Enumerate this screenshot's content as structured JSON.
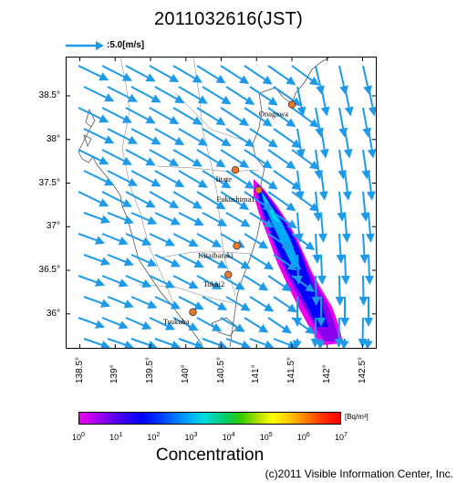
{
  "title": "2011032616(JST)",
  "wind_reference": {
    "label": ":5.0[m/s]",
    "arrow_color": "#1e9be8"
  },
  "map": {
    "lat_ticks": [
      {
        "value": 38.5,
        "label": "38.5°"
      },
      {
        "value": 38.0,
        "label": "38°"
      },
      {
        "value": 37.5,
        "label": "37.5°"
      },
      {
        "value": 37.0,
        "label": "37°"
      },
      {
        "value": 36.5,
        "label": "36.5°"
      },
      {
        "value": 36.0,
        "label": "36°"
      }
    ],
    "lon_ticks": [
      {
        "value": 138.5,
        "label": "138.5°"
      },
      {
        "value": 139.0,
        "label": "139°"
      },
      {
        "value": 139.5,
        "label": "139.5°"
      },
      {
        "value": 140.0,
        "label": "140°"
      },
      {
        "value": 140.5,
        "label": "140.5°"
      },
      {
        "value": 141.0,
        "label": "141°"
      },
      {
        "value": 141.5,
        "label": "141.5°"
      },
      {
        "value": 142.0,
        "label": "142°"
      },
      {
        "value": 142.5,
        "label": "142.5°"
      }
    ],
    "sites": [
      {
        "name": "Onagawa",
        "lon": 141.5,
        "lat": 38.4
      },
      {
        "name": "Iitate",
        "lon": 140.7,
        "lat": 37.65
      },
      {
        "name": "Fukushima1",
        "lon": 141.03,
        "lat": 37.42
      },
      {
        "name": "Kitaibaraki",
        "lon": 140.72,
        "lat": 36.78
      },
      {
        "name": "Tokai2",
        "lon": 140.6,
        "lat": 36.45
      },
      {
        "name": "Tsukuba",
        "lon": 140.1,
        "lat": 36.02
      }
    ],
    "site_marker_color": "#e8782a",
    "plume_description_colors": [
      "#0000ff",
      "#00aaff",
      "#00cccc",
      "#9900ee",
      "#ee00ee"
    ]
  },
  "colorbar": {
    "unit": "[Bq/m³]",
    "ticks": [
      {
        "base": "10",
        "exp": "0"
      },
      {
        "base": "10",
        "exp": "1"
      },
      {
        "base": "10",
        "exp": "2"
      },
      {
        "base": "10",
        "exp": "3"
      },
      {
        "base": "10",
        "exp": "4"
      },
      {
        "base": "10",
        "exp": "5"
      },
      {
        "base": "10",
        "exp": "6"
      },
      {
        "base": "10",
        "exp": "7"
      }
    ],
    "title": "Concentration"
  },
  "copyright": "(c)2011 Visible Information Center, Inc."
}
